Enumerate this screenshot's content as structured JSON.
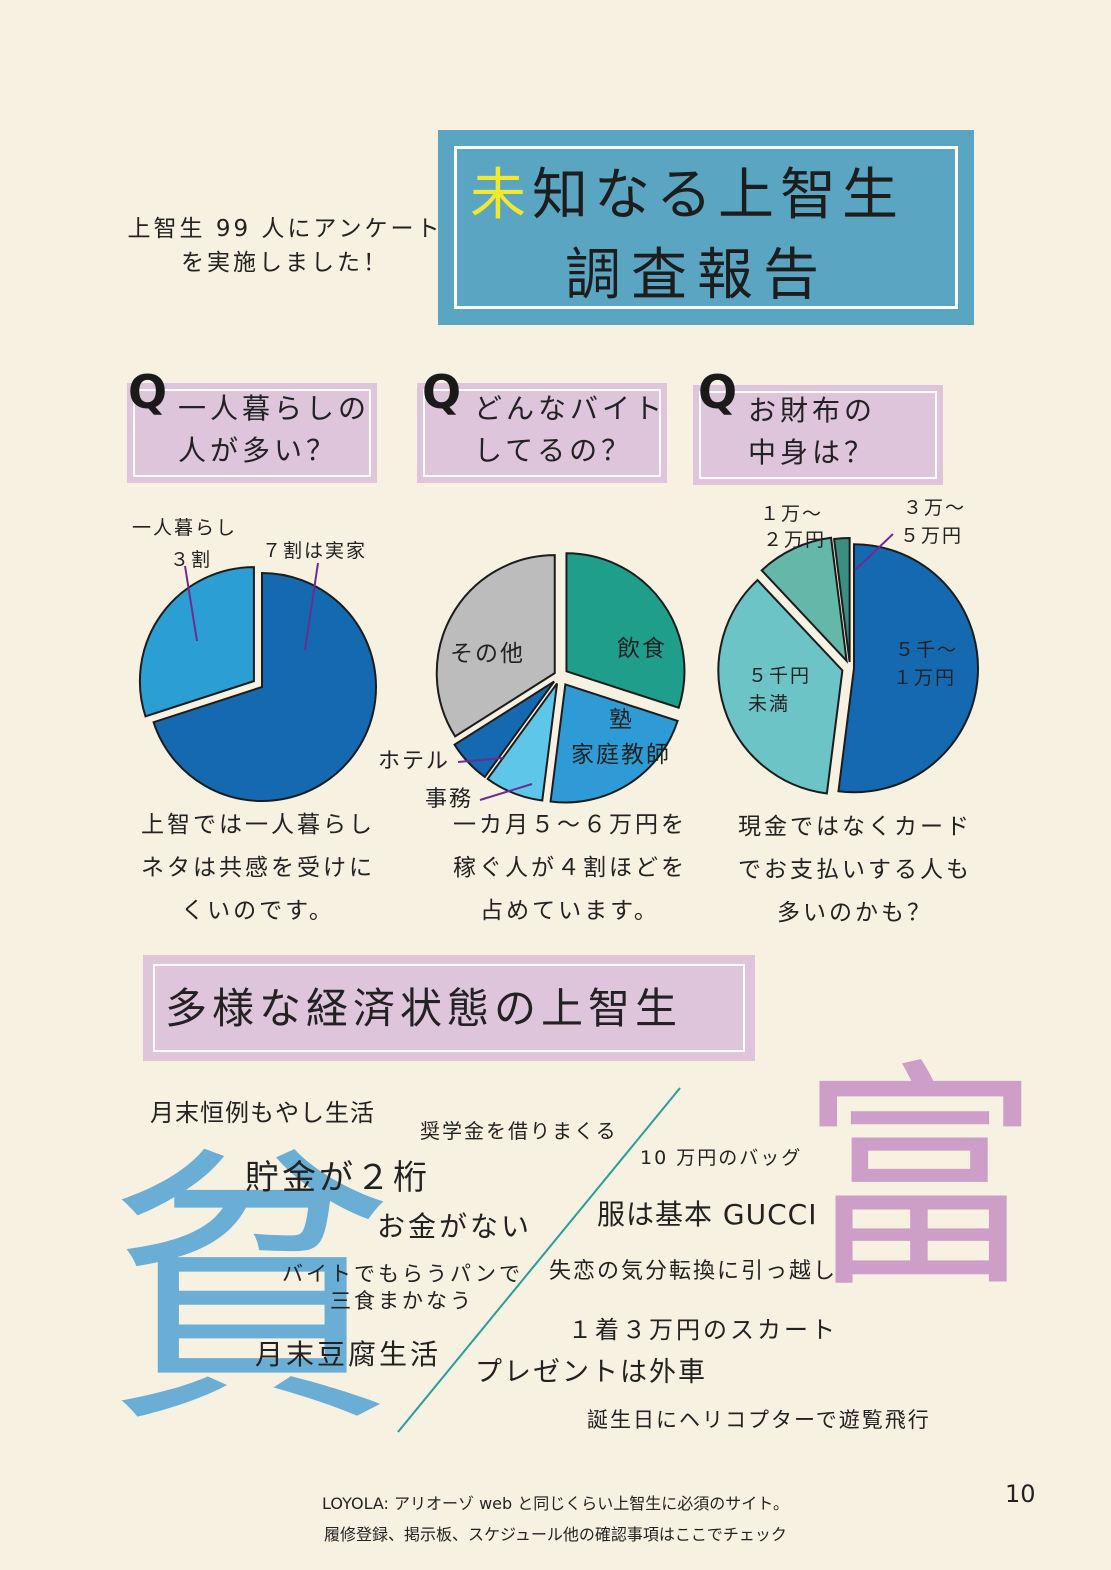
{
  "header": {
    "intro_line1": "上智生 99 人にアンケート",
    "intro_line2": "を実施しました！",
    "title_highlight": "未",
    "title_rest": "知なる上智生",
    "title_line2": "調査報告"
  },
  "questions": [
    {
      "q": "Q",
      "line1": "一人暮らしの",
      "line2": "人が多い？"
    },
    {
      "q": "Q",
      "line1": "どんなバイト",
      "line2": "してるの？"
    },
    {
      "q": "Q",
      "line1": "お財布の",
      "line2": "中身は？"
    }
  ],
  "chart_data": [
    {
      "type": "pie",
      "categories": [
        "一人暮らし３割",
        "７割は実家"
      ],
      "values": [
        30,
        70
      ],
      "labels": {
        "alone_1": "一人暮らし",
        "alone_2": "３割",
        "home": "７割は実家"
      }
    },
    {
      "type": "pie",
      "categories": [
        "飲食",
        "塾 家庭教師",
        "事務",
        "ホテル",
        "その他"
      ],
      "values": [
        30,
        22,
        8,
        6,
        34
      ],
      "labels": {
        "food": "飲食",
        "juku_1": "塾",
        "juku_2": "家庭教師",
        "office": "事務",
        "hotel": "ホテル",
        "other": "その他"
      }
    },
    {
      "type": "pie",
      "categories": [
        "５千〜１万円",
        "５千円未満",
        "１万〜２万円",
        "３万〜５万円"
      ],
      "values": [
        52,
        36,
        10,
        2
      ],
      "labels": {
        "mid_1": "５千〜",
        "mid_2": "１万円",
        "low_1": "５千円",
        "low_2": "未満",
        "high_1": "１万〜",
        "high_2": "２万円",
        "top_1": "３万〜",
        "top_2": "５万円"
      }
    }
  ],
  "captions": [
    {
      "line1": "上智では一人暮らし",
      "line2": "ネタは共感を受けに",
      "line3": "くいのです。"
    },
    {
      "line1": "一カ月５〜６万円を",
      "line2": "稼ぐ人が４割ほどを",
      "line3": "占めています。"
    },
    {
      "line1": "現金ではなくカード",
      "line2": "でお支払いする人も",
      "line3": "多いのかも？"
    }
  ],
  "section": {
    "title": "多様な経済状態の上智生"
  },
  "poor": {
    "kanji": "貧",
    "phrases": [
      "月末恒例もやし生活",
      "奨学金を借りまくる",
      "貯金が２桁",
      "お金がない",
      "バイトでもらうパンで",
      "三食まかなう",
      "月末豆腐生活"
    ]
  },
  "rich": {
    "kanji": "富",
    "phrases": [
      "10 万円のバッグ",
      "服は基本 GUCCI",
      "失恋の気分転換に引っ越し",
      "１着３万円のスカート",
      "プレゼントは外車",
      "誕生日にヘリコプターで遊覧飛行"
    ]
  },
  "colors": {
    "poor": "#6aaed6",
    "rich": "#cc9ec8",
    "divider": "#2a9d9a"
  },
  "footer": {
    "line1": "LOYOLA: アリオーゾ web と同じくらい上智生に必須のサイト。",
    "line2": "履修登録、掲示板、スケジュール他の確認事項はここでチェック",
    "page": "10"
  }
}
